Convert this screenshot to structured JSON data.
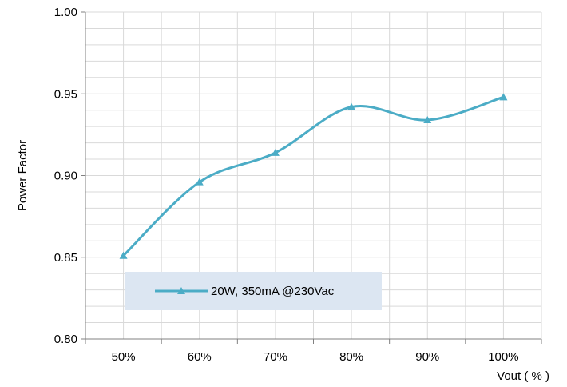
{
  "chart_data": {
    "type": "line",
    "categories": [
      "50%",
      "60%",
      "70%",
      "80%",
      "90%",
      "100%"
    ],
    "series": [
      {
        "name": "20W, 350mA @230Vac",
        "values": [
          0.851,
          0.896,
          0.914,
          0.942,
          0.934,
          0.948
        ],
        "marker": "triangle"
      }
    ],
    "xlabel": "Vout ( % )",
    "ylabel": "Power Factor",
    "ylim": [
      0.8,
      1.0
    ],
    "yticks": [
      "0.80",
      "0.85",
      "0.90",
      "0.95",
      "1.00"
    ],
    "y_major_step": 0.05,
    "y_minor_step": 0.01,
    "grid": true,
    "smooth": true,
    "legend_position": "bottom-left",
    "colors": {
      "series": "#4BACC6",
      "grid": "#D9D9D9",
      "axis": "#808080",
      "legend_bg": "#DCE6F2"
    }
  }
}
